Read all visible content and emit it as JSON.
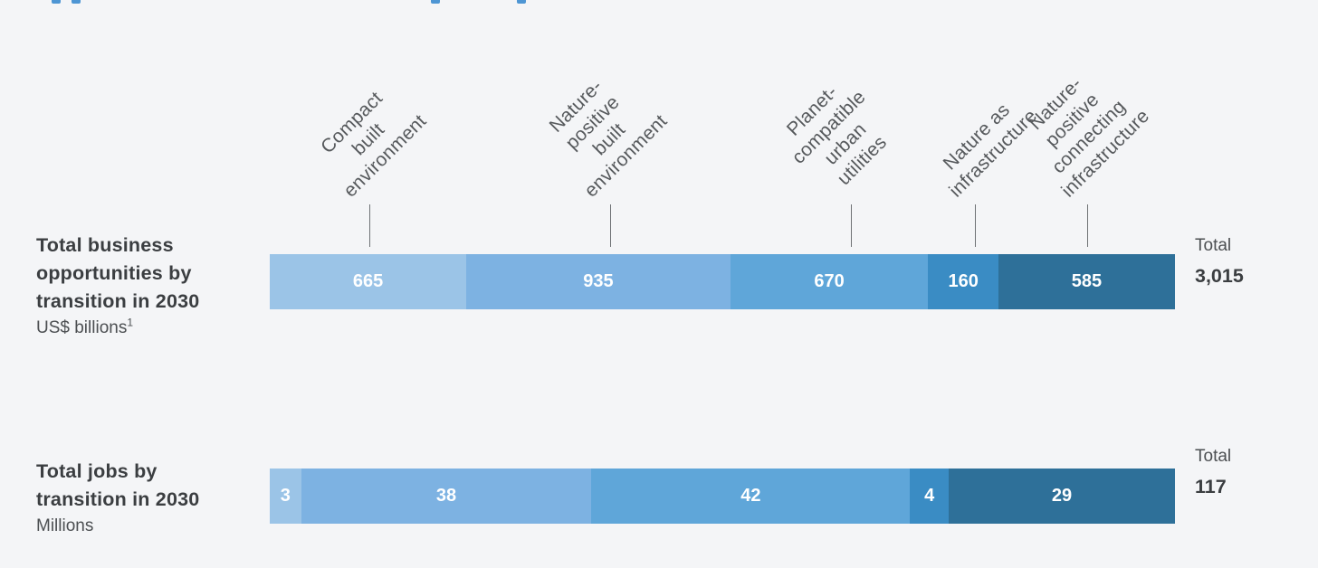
{
  "page": {
    "background_color": "#f4f5f7",
    "clipped_heading_color": "#4e96d4"
  },
  "chart_data": {
    "type": "bar",
    "orientation": "horizontal-stacked",
    "grid": false,
    "legend_position": "rotated category labels above bar with leader ticks",
    "categories": [
      "Compact built environment",
      "Nature-positive built environment",
      "Planet-compatible urban utilities",
      "Nature as infrastructure",
      "Nature-positive connecting infrastructure"
    ],
    "categories_multiline": [
      "Compact built\nenvironment",
      "Nature-positive\nbuilt environment",
      "Planet-compatible\nurban utilities",
      "Nature as\ninfrastructure",
      "Nature-positive\nconnecting infrastructure"
    ],
    "segment_colors": [
      "#9bc4e7",
      "#7db2e2",
      "#5fa6d9",
      "#3a8cc4",
      "#2e7099"
    ],
    "value_label_color": "#ffffff",
    "rows": [
      {
        "title": "Total business\nopportunities by\ntransition in 2030",
        "unit": "US$ billions",
        "footnote_marker": "1",
        "values": [
          665,
          935,
          670,
          160,
          585
        ],
        "values_display": [
          "665",
          "935",
          "670",
          "160",
          "585"
        ],
        "total_label": "Total",
        "total_display": "3,015"
      },
      {
        "title": "Total jobs by\ntransition in 2030",
        "unit": "Millions",
        "footnote_marker": "",
        "values": [
          3,
          38,
          42,
          4,
          29
        ],
        "values_display": [
          "3",
          "38",
          "42",
          "4",
          "29"
        ],
        "total_label": "Total",
        "total_display": "117"
      }
    ]
  }
}
